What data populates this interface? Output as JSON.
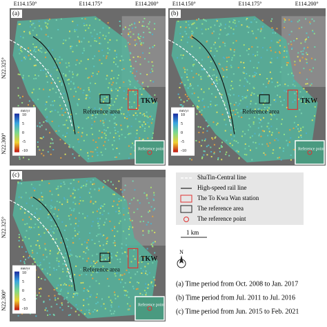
{
  "axes": {
    "top_ticks": [
      "E114.150°",
      "E114.175°",
      "E114.200°"
    ],
    "left_ticks": [
      "N22.325°",
      "N22.300°"
    ]
  },
  "panels": [
    {
      "label": "(a)",
      "colorbar": {
        "unit": "mm/yr",
        "ticks": [
          10,
          5,
          0,
          -5,
          -10
        ]
      },
      "reference_area": "Reference area",
      "station": "TKW",
      "inset": "Reference point"
    },
    {
      "label": "(b)",
      "colorbar": {
        "unit": "mm/yr",
        "ticks": [
          10,
          5,
          0,
          -5,
          -10
        ]
      },
      "reference_area": "Reference area",
      "station": "TKW",
      "inset": "Reference point"
    },
    {
      "label": "(c)",
      "colorbar": {
        "unit": "mm/yr",
        "ticks": [
          10,
          5,
          0,
          -5,
          -10
        ]
      },
      "reference_area": "Reference area",
      "station": "TKW",
      "inset": "Reference point"
    }
  ],
  "legend": [
    "ShaTin-Central line",
    "High-speed rail line",
    "The To Kwa Wan station",
    "The reference area",
    "The reference point"
  ],
  "compass": "N",
  "scale_bar": "1 km",
  "periods": [
    "(a) Time period from Oct. 2008 to Jan. 2017",
    "(b) Time period from Jul. 2011 to Jul. 2016",
    "(c) Time period from Jun. 2015 to Feb. 2021"
  ]
}
